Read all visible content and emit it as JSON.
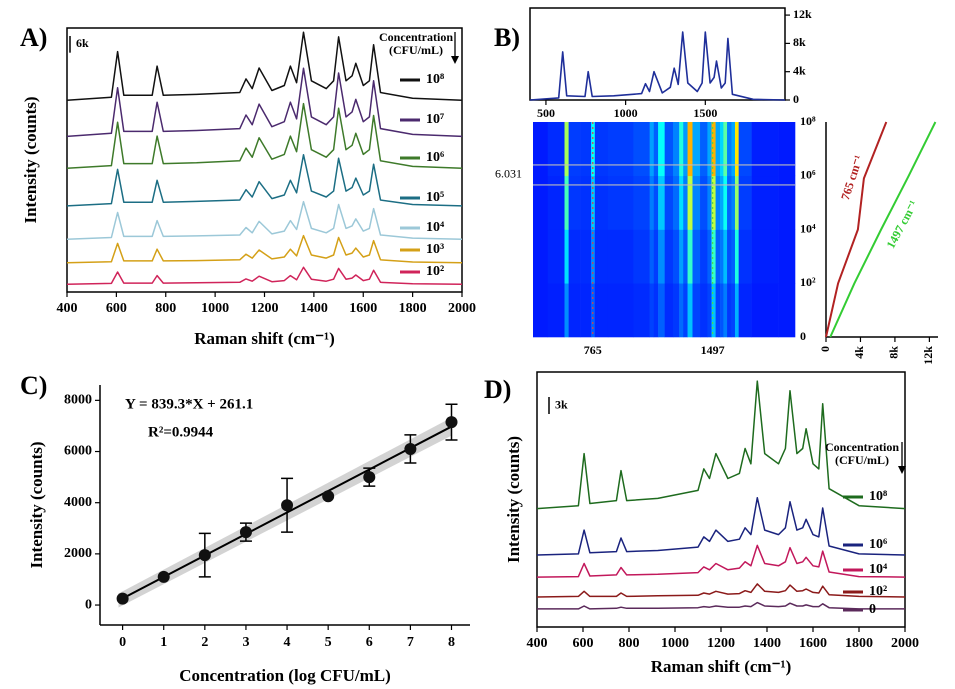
{
  "chart_data": [
    {
      "type": "line",
      "panel_label": "A)",
      "xlabel": "Raman shift (cm⁻¹)",
      "ylabel": "Intensity (counts)",
      "legend_title": [
        "Concentration",
        "(CFU/mL)"
      ],
      "scale_bar": {
        "value": 6000,
        "label": "6k"
      },
      "xlim": [
        400,
        2000
      ],
      "ylim": [
        0,
        95000
      ],
      "xticks": [
        400,
        600,
        800,
        1000,
        1200,
        1400,
        1600,
        1800,
        2000
      ],
      "x": [
        400,
        580,
        605,
        630,
        745,
        765,
        790,
        925,
        1100,
        1125,
        1150,
        1178,
        1230,
        1280,
        1305,
        1330,
        1358,
        1390,
        1450,
        1480,
        1500,
        1530,
        1555,
        1570,
        1600,
        1625,
        1642,
        1670,
        1800,
        2000
      ],
      "series": [
        {
          "name": "10⁸",
          "color": "#111111",
          "values": [
            69000,
            70100,
            86500,
            70800,
            70800,
            81300,
            70800,
            71100,
            71800,
            76700,
            73200,
            80600,
            72500,
            74300,
            81300,
            75300,
            93500,
            76000,
            73200,
            76000,
            91800,
            76000,
            77800,
            82300,
            74300,
            76000,
            89000,
            71800,
            69700,
            69000
          ]
        },
        {
          "name": "10⁷",
          "color": "#4b2a6e",
          "values": [
            56000,
            57100,
            73500,
            57800,
            57800,
            68300,
            57800,
            58100,
            58800,
            63700,
            60200,
            67600,
            59500,
            61300,
            68300,
            62300,
            80500,
            63000,
            60200,
            63000,
            78800,
            63000,
            64800,
            69300,
            61300,
            63000,
            76000,
            58800,
            56700,
            56000
          ]
        },
        {
          "name": "10⁶",
          "color": "#3e7a2a",
          "values": [
            44500,
            45500,
            61100,
            46200,
            46200,
            56100,
            46200,
            46500,
            47200,
            51800,
            48500,
            55500,
            47800,
            49500,
            56100,
            50500,
            67800,
            51200,
            48500,
            51200,
            66100,
            51200,
            52800,
            57100,
            49500,
            51200,
            63500,
            47200,
            45200,
            44500
          ]
        },
        {
          "name": "10⁵",
          "color": "#1c6e84",
          "values": [
            31000,
            31800,
            44100,
            32300,
            32300,
            40200,
            32300,
            32600,
            33100,
            36800,
            34200,
            39700,
            33600,
            34900,
            40200,
            35700,
            49400,
            36300,
            34200,
            36300,
            48100,
            36300,
            37600,
            41000,
            34900,
            36300,
            46000,
            33100,
            31500,
            31000
          ]
        },
        {
          "name": "10⁴",
          "color": "#9cc8d8",
          "values": [
            19000,
            19600,
            28600,
            20000,
            20000,
            25700,
            20000,
            20200,
            20500,
            23200,
            21300,
            25400,
            20900,
            21900,
            25700,
            22500,
            32500,
            22900,
            21300,
            22900,
            31500,
            22900,
            23800,
            26300,
            21900,
            22900,
            30000,
            20500,
            19400,
            19000
          ]
        },
        {
          "name": "10³",
          "color": "#d4a017",
          "values": [
            10500,
            10900,
            17500,
            11200,
            11200,
            15400,
            11200,
            11300,
            11600,
            13600,
            12200,
            15100,
            11900,
            12600,
            15400,
            13000,
            20300,
            13300,
            12200,
            13300,
            19600,
            13300,
            14000,
            15800,
            12600,
            13300,
            18500,
            11600,
            10800,
            10500
          ]
        },
        {
          "name": "10²",
          "color": "#d0245a",
          "values": [
            2800,
            3100,
            7200,
            3200,
            3200,
            5900,
            3200,
            3300,
            3500,
            4700,
            3900,
            5700,
            3700,
            4100,
            5900,
            4400,
            8900,
            4600,
            3900,
            4600,
            8500,
            4600,
            5000,
            6100,
            4100,
            4600,
            7800,
            3500,
            3000,
            2800
          ]
        }
      ]
    },
    {
      "type": "line",
      "panel_label": "B)",
      "xlim": [
        400,
        2000
      ],
      "ylim": [
        0,
        13000
      ],
      "xticks": [
        500,
        1000,
        1500
      ],
      "yticks": [
        0,
        {
          "value": 4000,
          "label": "4k"
        },
        {
          "value": 8000,
          "label": "8k"
        },
        {
          "value": 12000,
          "label": "12k"
        }
      ],
      "x": [
        400,
        580,
        605,
        630,
        745,
        765,
        790,
        925,
        1100,
        1125,
        1150,
        1178,
        1230,
        1280,
        1305,
        1330,
        1358,
        1390,
        1450,
        1480,
        1500,
        1530,
        1555,
        1570,
        1600,
        1625,
        1642,
        1670,
        1800,
        2000
      ],
      "series": [
        {
          "color": "#1f2f9a",
          "values": [
            0,
            300,
            6800,
            600,
            500,
            4000,
            500,
            600,
            900,
            2300,
            1200,
            4000,
            1000,
            1800,
            4500,
            2200,
            9600,
            2400,
            1200,
            2400,
            9600,
            2400,
            3200,
            5500,
            1700,
            2400,
            8700,
            800,
            100,
            0
          ]
        }
      ]
    },
    {
      "type": "heatmap",
      "xlim": [
        400,
        2000
      ],
      "ylim": [
        0,
        8
      ],
      "xticks": [
        765,
        1497
      ],
      "xtick_colors": [
        "#e04040",
        "#50d850"
      ],
      "yticks": [
        {
          "value": 0,
          "label": "0"
        },
        {
          "value": 2,
          "label": "10²"
        },
        {
          "value": 4,
          "label": "10⁴"
        },
        {
          "value": 6,
          "label": "10⁶"
        },
        {
          "value": 8,
          "label": "10⁸"
        }
      ],
      "marker": {
        "value": 6.031,
        "label": "6.031"
      },
      "x": [
        400,
        580,
        605,
        630,
        745,
        765,
        790,
        925,
        1100,
        1125,
        1150,
        1178,
        1230,
        1280,
        1305,
        1330,
        1358,
        1390,
        1450,
        1480,
        1500,
        1530,
        1555,
        1570,
        1600,
        1625,
        1642,
        1670,
        1800,
        2000
      ],
      "y_edges": [
        0,
        2,
        4,
        6,
        8
      ],
      "z": [
        [
          0,
          100,
          2000,
          200,
          200,
          1200,
          200,
          200,
          300,
          700,
          400,
          1200,
          300,
          500,
          1400,
          700,
          2900,
          700,
          400,
          700,
          2900,
          700,
          1000,
          1700,
          500,
          700,
          2600,
          200,
          0,
          0
        ],
        [
          0,
          200,
          3400,
          300,
          300,
          2000,
          300,
          300,
          500,
          1200,
          600,
          2000,
          500,
          900,
          2300,
          1100,
          4800,
          1200,
          600,
          1200,
          4800,
          1200,
          1600,
          2800,
          900,
          1200,
          4400,
          400,
          100,
          0
        ],
        [
          0,
          200,
          5100,
          500,
          400,
          3000,
          400,
          500,
          700,
          1700,
          900,
          3000,
          800,
          1400,
          3400,
          1700,
          7200,
          1800,
          900,
          1800,
          7200,
          1800,
          2400,
          4100,
          1300,
          1800,
          6500,
          600,
          100,
          0
        ],
        [
          0,
          300,
          6800,
          600,
          500,
          4000,
          500,
          600,
          900,
          2300,
          1200,
          4000,
          1000,
          1800,
          4500,
          2200,
          9600,
          2400,
          1200,
          2400,
          9600,
          2400,
          3200,
          5500,
          1700,
          2400,
          8700,
          800,
          100,
          0
        ]
      ]
    },
    {
      "type": "line",
      "xlim": [
        0,
        13000
      ],
      "ylim": [
        0,
        8
      ],
      "xticks": [
        0,
        {
          "value": 4000,
          "label": "4k"
        },
        {
          "value": 8000,
          "label": "8k"
        },
        {
          "value": 12000,
          "label": "12k"
        }
      ],
      "series": [
        {
          "name": "765 cm⁻¹",
          "color": "#b22222",
          "x": [
            0,
            1400,
            3700,
            4400,
            7000
          ],
          "values": [
            0,
            2,
            4,
            5.9,
            8
          ]
        },
        {
          "name": "1497 cm⁻¹",
          "color": "#33cc33",
          "x": [
            500,
            3300,
            6400,
            9600,
            12700
          ],
          "values": [
            0,
            2,
            4,
            6,
            8
          ]
        }
      ]
    },
    {
      "type": "scatter",
      "panel_label": "C)",
      "xlabel": "Concentration (log CFU/mL)",
      "ylabel": "Intensity (counts)",
      "equation": "Y = 839.3*X + 261.1",
      "r2_label": "R²=0.9944",
      "fit": {
        "slope": 839.3,
        "intercept": 261.1
      },
      "xlim": [
        -0.55,
        8.45
      ],
      "ylim": [
        -780,
        8600
      ],
      "xticks": [
        0,
        1,
        2,
        3,
        4,
        5,
        6,
        7,
        8
      ],
      "yticks": [
        0,
        2000,
        4000,
        6000,
        8000
      ],
      "color": "#111111",
      "x": [
        0,
        1,
        2,
        3,
        4,
        5,
        6,
        7,
        8
      ],
      "values": [
        250,
        1100,
        1950,
        2850,
        3900,
        4250,
        5000,
        6100,
        7150
      ],
      "errors": [
        0,
        0,
        850,
        350,
        1050,
        0,
        350,
        550,
        700
      ]
    },
    {
      "type": "line",
      "panel_label": "D)",
      "xlabel": "Raman shift (cm⁻¹)",
      "ylabel": "Intensity (counts)",
      "legend_title": [
        "Concentration",
        "(CFU/mL)"
      ],
      "scale_bar": {
        "value": 3000,
        "label": "3k"
      },
      "xlim": [
        400,
        2000
      ],
      "ylim": [
        0,
        45000
      ],
      "xticks": [
        400,
        600,
        800,
        1000,
        1200,
        1400,
        1600,
        1800,
        2000
      ],
      "x": [
        400,
        580,
        605,
        630,
        745,
        765,
        790,
        925,
        1100,
        1125,
        1150,
        1178,
        1230,
        1280,
        1305,
        1330,
        1358,
        1390,
        1450,
        1480,
        1500,
        1530,
        1555,
        1570,
        1600,
        1625,
        1642,
        1670,
        1800,
        2000
      ],
      "series": [
        {
          "name": "10⁸",
          "color": "#1e6b1e",
          "values": [
            20900,
            21400,
            30600,
            21800,
            22300,
            27600,
            22300,
            22700,
            24100,
            27900,
            26200,
            30600,
            26200,
            27100,
            31500,
            28800,
            43400,
            30600,
            28800,
            31500,
            41700,
            30600,
            31500,
            35000,
            28800,
            27900,
            39400,
            24400,
            21400,
            20900
          ]
        },
        {
          "name": "10⁶",
          "color": "#1a237e",
          "values": [
            12700,
            12900,
            17100,
            13100,
            13300,
            15700,
            13300,
            13500,
            14100,
            15900,
            15100,
            17100,
            15100,
            15500,
            17500,
            16300,
            22800,
            17100,
            16300,
            17500,
            22100,
            17100,
            17500,
            19000,
            16300,
            15900,
            21000,
            14300,
            12900,
            12700
          ]
        },
        {
          "name": "10⁴",
          "color": "#c2185b",
          "values": [
            8800,
            8900,
            11200,
            9000,
            9200,
            10500,
            9200,
            9300,
            9600,
            10600,
            10100,
            11200,
            10100,
            10400,
            11500,
            10800,
            14400,
            11200,
            10800,
            11500,
            14000,
            11200,
            11500,
            12300,
            10800,
            10600,
            13400,
            9700,
            8900,
            8800
          ]
        },
        {
          "name": "10²",
          "color": "#8b1a1a",
          "values": [
            5300,
            5400,
            6300,
            5400,
            5400,
            6000,
            5400,
            5500,
            5600,
            6000,
            5800,
            6300,
            5800,
            5900,
            6400,
            6100,
            7600,
            6300,
            6100,
            6400,
            7400,
            6300,
            6400,
            6700,
            6100,
            6000,
            7200,
            5700,
            5400,
            5300
          ]
        },
        {
          "name": "0",
          "color": "#5b2a5b",
          "values": [
            3200,
            3200,
            3700,
            3200,
            3300,
            3500,
            3300,
            3300,
            3400,
            3600,
            3500,
            3700,
            3500,
            3500,
            3700,
            3600,
            4300,
            3700,
            3600,
            3700,
            4200,
            3700,
            3700,
            3900,
            3600,
            3600,
            4100,
            3400,
            3200,
            3200
          ]
        }
      ]
    }
  ]
}
